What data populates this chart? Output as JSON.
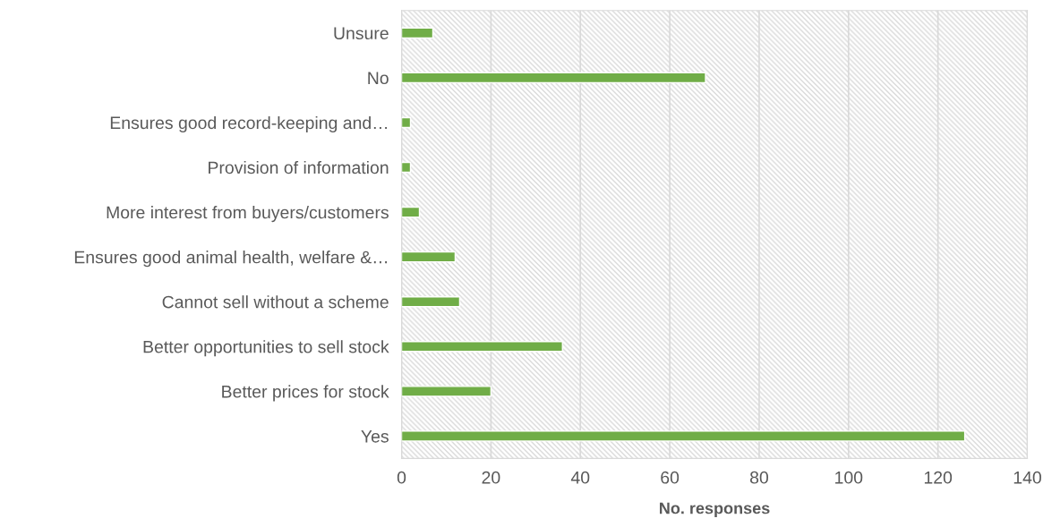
{
  "chart_data": {
    "type": "bar",
    "orientation": "horizontal",
    "categories": [
      "Unsure",
      "No",
      "Ensures good record-keeping and…",
      "Provision of information",
      "More interest from buyers/customers",
      "Ensures good animal health, welfare &…",
      "Cannot sell without a scheme",
      "Better opportunities to sell stock",
      "Better prices for stock",
      "Yes"
    ],
    "values": [
      7,
      68,
      2,
      2,
      4,
      12,
      13,
      36,
      20,
      126
    ],
    "color": "#70ad47",
    "xlabel": "No. responses",
    "xlim": [
      0,
      140
    ],
    "xticks": [
      0,
      20,
      40,
      60,
      80,
      100,
      120,
      140
    ],
    "grid": "x",
    "legend": false
  }
}
